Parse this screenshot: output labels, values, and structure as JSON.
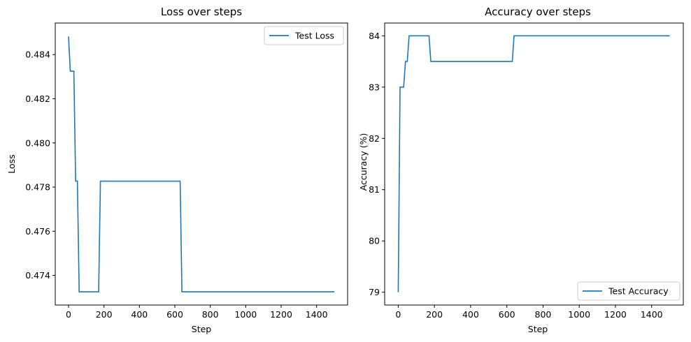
{
  "chart_data": [
    {
      "type": "line",
      "title": "Loss over steps",
      "xlabel": "Step",
      "ylabel": "Loss",
      "xlim": [
        -75,
        1575
      ],
      "ylim": [
        0.47266,
        0.48543
      ],
      "xticks": [
        0,
        200,
        400,
        600,
        800,
        1000,
        1200,
        1400
      ],
      "yticks": [
        0.474,
        0.476,
        0.478,
        0.48,
        0.482,
        0.484
      ],
      "ytick_labels": [
        "0.474",
        "0.476",
        "0.478",
        "0.480",
        "0.482",
        "0.484"
      ],
      "grid": false,
      "legend": "top-right",
      "series": [
        {
          "name": "Test Loss",
          "color": "#1f77b4",
          "x": [
            0,
            10,
            20,
            30,
            40,
            50,
            60,
            70,
            170,
            180,
            620,
            630,
            640,
            1500
          ],
          "y": [
            0.48482,
            0.48325,
            0.48325,
            0.48325,
            0.47827,
            0.47827,
            0.47326,
            0.47326,
            0.47326,
            0.47827,
            0.47827,
            0.47827,
            0.47326,
            0.47326
          ]
        }
      ]
    },
    {
      "type": "line",
      "title": "Accuracy over steps",
      "xlabel": "Step",
      "ylabel": "Accuracy (%)",
      "xlim": [
        -75,
        1575
      ],
      "ylim": [
        78.75,
        84.25
      ],
      "xticks": [
        0,
        200,
        400,
        600,
        800,
        1000,
        1200,
        1400
      ],
      "yticks": [
        79,
        80,
        81,
        82,
        83,
        84
      ],
      "ytick_labels": [
        "79",
        "80",
        "81",
        "82",
        "83",
        "84"
      ],
      "grid": false,
      "legend": "bottom-right",
      "series": [
        {
          "name": "Test Accuracy",
          "color": "#1f77b4",
          "x": [
            0,
            10,
            20,
            30,
            40,
            50,
            60,
            70,
            170,
            180,
            630,
            640,
            1500
          ],
          "y": [
            79,
            83,
            83,
            83,
            83.5,
            83.5,
            84,
            84,
            84,
            83.5,
            83.5,
            84,
            84
          ]
        }
      ]
    }
  ]
}
